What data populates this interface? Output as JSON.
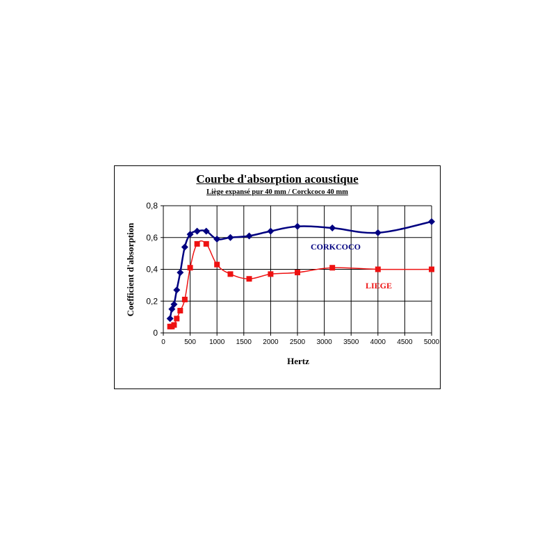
{
  "chart_data": {
    "type": "line",
    "title": "Courbe d'absorption acoustique",
    "subtitle": "Liège expansé pur 40 mm / Corckcoco 40 mm",
    "xlabel": "Hertz",
    "ylabel": "Coefficient d'absorption",
    "xlim": [
      0,
      5000
    ],
    "ylim": [
      0,
      0.8
    ],
    "x_ticks": [
      0,
      500,
      1000,
      1500,
      2000,
      2500,
      3000,
      3500,
      4000,
      4500,
      5000
    ],
    "x_tick_labels": [
      "0",
      "500",
      "1000",
      "1500",
      "2000",
      "2500",
      "3000",
      "3500",
      "4000",
      "4500",
      "5000"
    ],
    "y_ticks": [
      0,
      0.2,
      0.4,
      0.6,
      0.8
    ],
    "y_tick_labels": [
      "0",
      "0,2",
      "0,4",
      "0,6",
      "0,8"
    ],
    "grid": true,
    "series": [
      {
        "name": "CORKCOCO",
        "color": "#000080",
        "marker": "diamond",
        "x": [
          125,
          160,
          200,
          250,
          315,
          400,
          500,
          630,
          800,
          1000,
          1250,
          1600,
          2000,
          2500,
          3150,
          4000,
          5000
        ],
        "values": [
          0.09,
          0.15,
          0.18,
          0.27,
          0.38,
          0.54,
          0.62,
          0.64,
          0.64,
          0.59,
          0.6,
          0.61,
          0.64,
          0.67,
          0.66,
          0.63,
          0.7
        ]
      },
      {
        "name": "LIEGE",
        "color": "#ee1111",
        "marker": "square",
        "x": [
          125,
          160,
          200,
          250,
          315,
          400,
          500,
          630,
          800,
          1000,
          1250,
          1600,
          2000,
          2500,
          3150,
          4000,
          5000
        ],
        "values": [
          0.04,
          0.04,
          0.05,
          0.09,
          0.14,
          0.21,
          0.41,
          0.56,
          0.56,
          0.43,
          0.37,
          0.34,
          0.37,
          0.38,
          0.41,
          0.4,
          0.4
        ]
      }
    ]
  }
}
